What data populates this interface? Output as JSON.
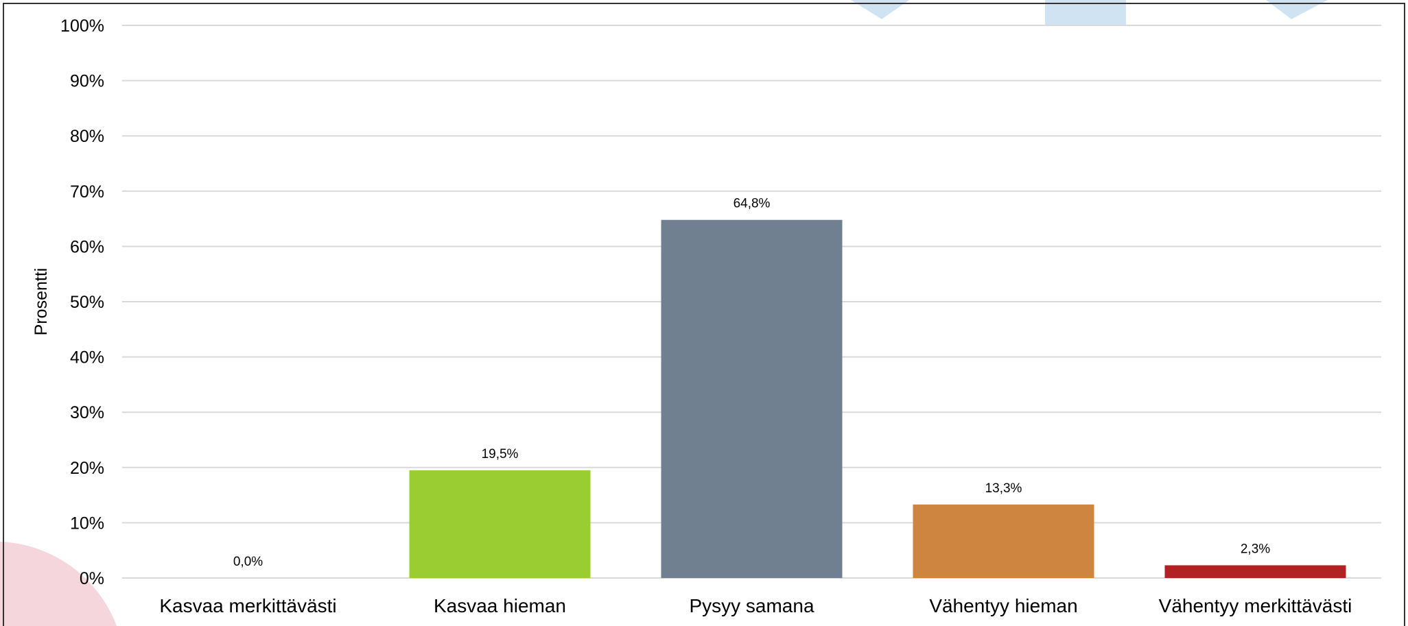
{
  "chart_data": {
    "type": "bar",
    "title": "",
    "xlabel": "",
    "ylabel": "Prosentti",
    "ylim": [
      0,
      100
    ],
    "yticks": [
      0,
      10,
      20,
      30,
      40,
      50,
      60,
      70,
      80,
      90,
      100
    ],
    "ytick_labels": [
      "0%",
      "10%",
      "20%",
      "30%",
      "40%",
      "50%",
      "60%",
      "70%",
      "80%",
      "90%",
      "100%"
    ],
    "grid": true,
    "legend": "none",
    "categories": [
      "Kasvaa merkittävästi",
      "Kasvaa hieman",
      "Pysyy samana",
      "Vähentyy hieman",
      "Vähentyy merkittävästi"
    ],
    "values": [
      0.0,
      19.5,
      64.8,
      13.3,
      2.3
    ],
    "data_labels": [
      "0,0%",
      "19,5%",
      "64,8%",
      "13,3%",
      "2,3%"
    ],
    "colors": [
      "#9ACD32",
      "#9ACD32",
      "#708090",
      "#CD853F",
      "#B22222"
    ]
  }
}
